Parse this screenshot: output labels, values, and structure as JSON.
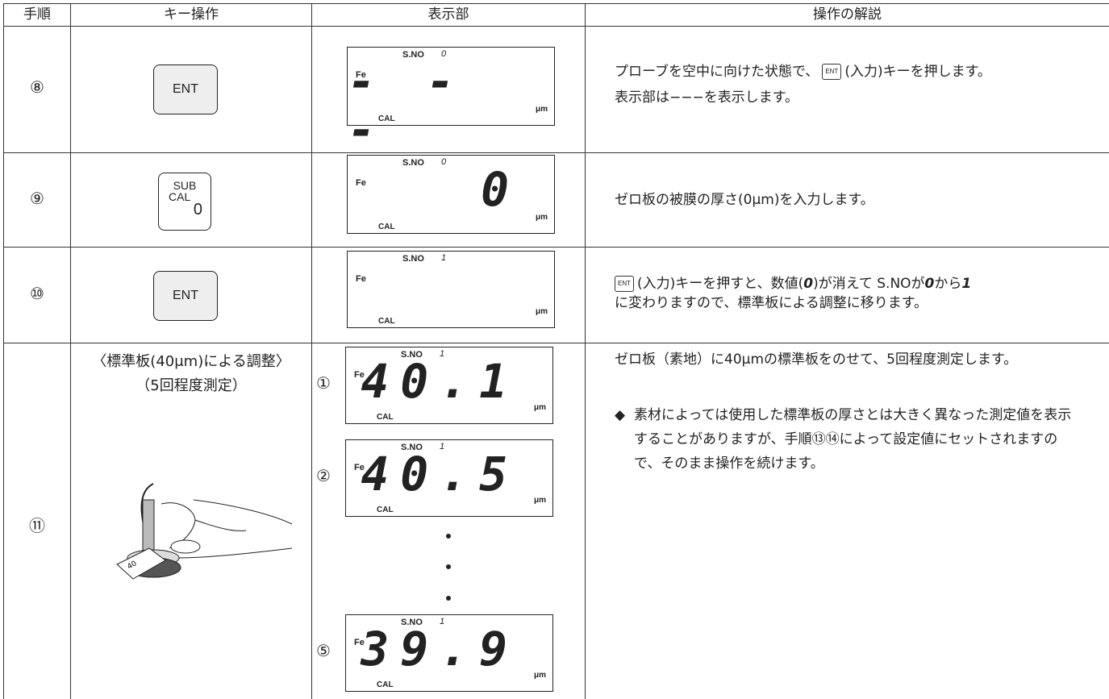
{
  "table": {
    "header": [
      "手順",
      "キー操作",
      "表示部",
      "操作の解説"
    ],
    "rows": [
      {
        "step": "⑧",
        "key": {
          "label": "ENT"
        },
        "display": {
          "s_no_label": "S.NO",
          "s_no": "0",
          "fe": "Fe",
          "value": "- - -",
          "unit": "μm",
          "cal": "CAL"
        },
        "description": {
          "before": "プローブを空中に向けた状態で、",
          "key": "ENT",
          "after": "(入力)キーを押します。",
          "line2": "表示部は−−−を表示します。"
        }
      },
      {
        "step": "⑨",
        "key": {
          "top": "SUB",
          "middle": "CAL",
          "bottom": "0"
        },
        "display": {
          "s_no_label": "S.NO",
          "s_no": "0",
          "fe": "Fe",
          "value": "0",
          "unit": "μm",
          "cal": "CAL"
        },
        "description": {
          "text": "ゼロ板の被膜の厚さ(0μm)を入力します。"
        }
      },
      {
        "step": "⑩",
        "key": {
          "label": "ENT"
        },
        "display": {
          "s_no_label": "S.NO",
          "s_no": "1",
          "fe": "Fe",
          "unit": "μm",
          "cal": "CAL"
        },
        "description": {
          "key": "ENT",
          "t1": "(入力)キーを押すと、数値(",
          "d1": "0",
          "t2": ")が消えて S.NOが",
          "d2": "0",
          "t3": "から",
          "d3": "1",
          "line2": "に変わりますので、標準板による調整に移ります。"
        }
      },
      {
        "step": "⑪",
        "key": {
          "title": "〈標準板(40μm)による調整〉",
          "subtitle": "（5回程度測定）",
          "illustration_label": "40"
        },
        "displays": [
          {
            "marker": "①",
            "s_no_label": "S.NO",
            "s_no": "1",
            "fe": "Fe",
            "value": "40.1",
            "unit": "μm",
            "cal": "CAL"
          },
          {
            "marker": "②",
            "s_no_label": "S.NO",
            "s_no": "1",
            "fe": "Fe",
            "value": "40.5",
            "unit": "μm",
            "cal": "CAL"
          },
          {
            "marker": "⑤",
            "s_no_label": "S.NO",
            "s_no": "1",
            "fe": "Fe",
            "value": "39.9",
            "unit": "μm",
            "cal": "CAL"
          }
        ],
        "description": {
          "text": "ゼロ板（素地）に40μmの標準板をのせて、5回程度測定します。",
          "note_mark": "◆",
          "note": "素材によっては使用した標準板の厚さとは大きく異なった測定値を表示することがありますが、手順⑬⑭によって設定値にセットされますので、そのまま操作を続けます。"
        }
      }
    ]
  }
}
